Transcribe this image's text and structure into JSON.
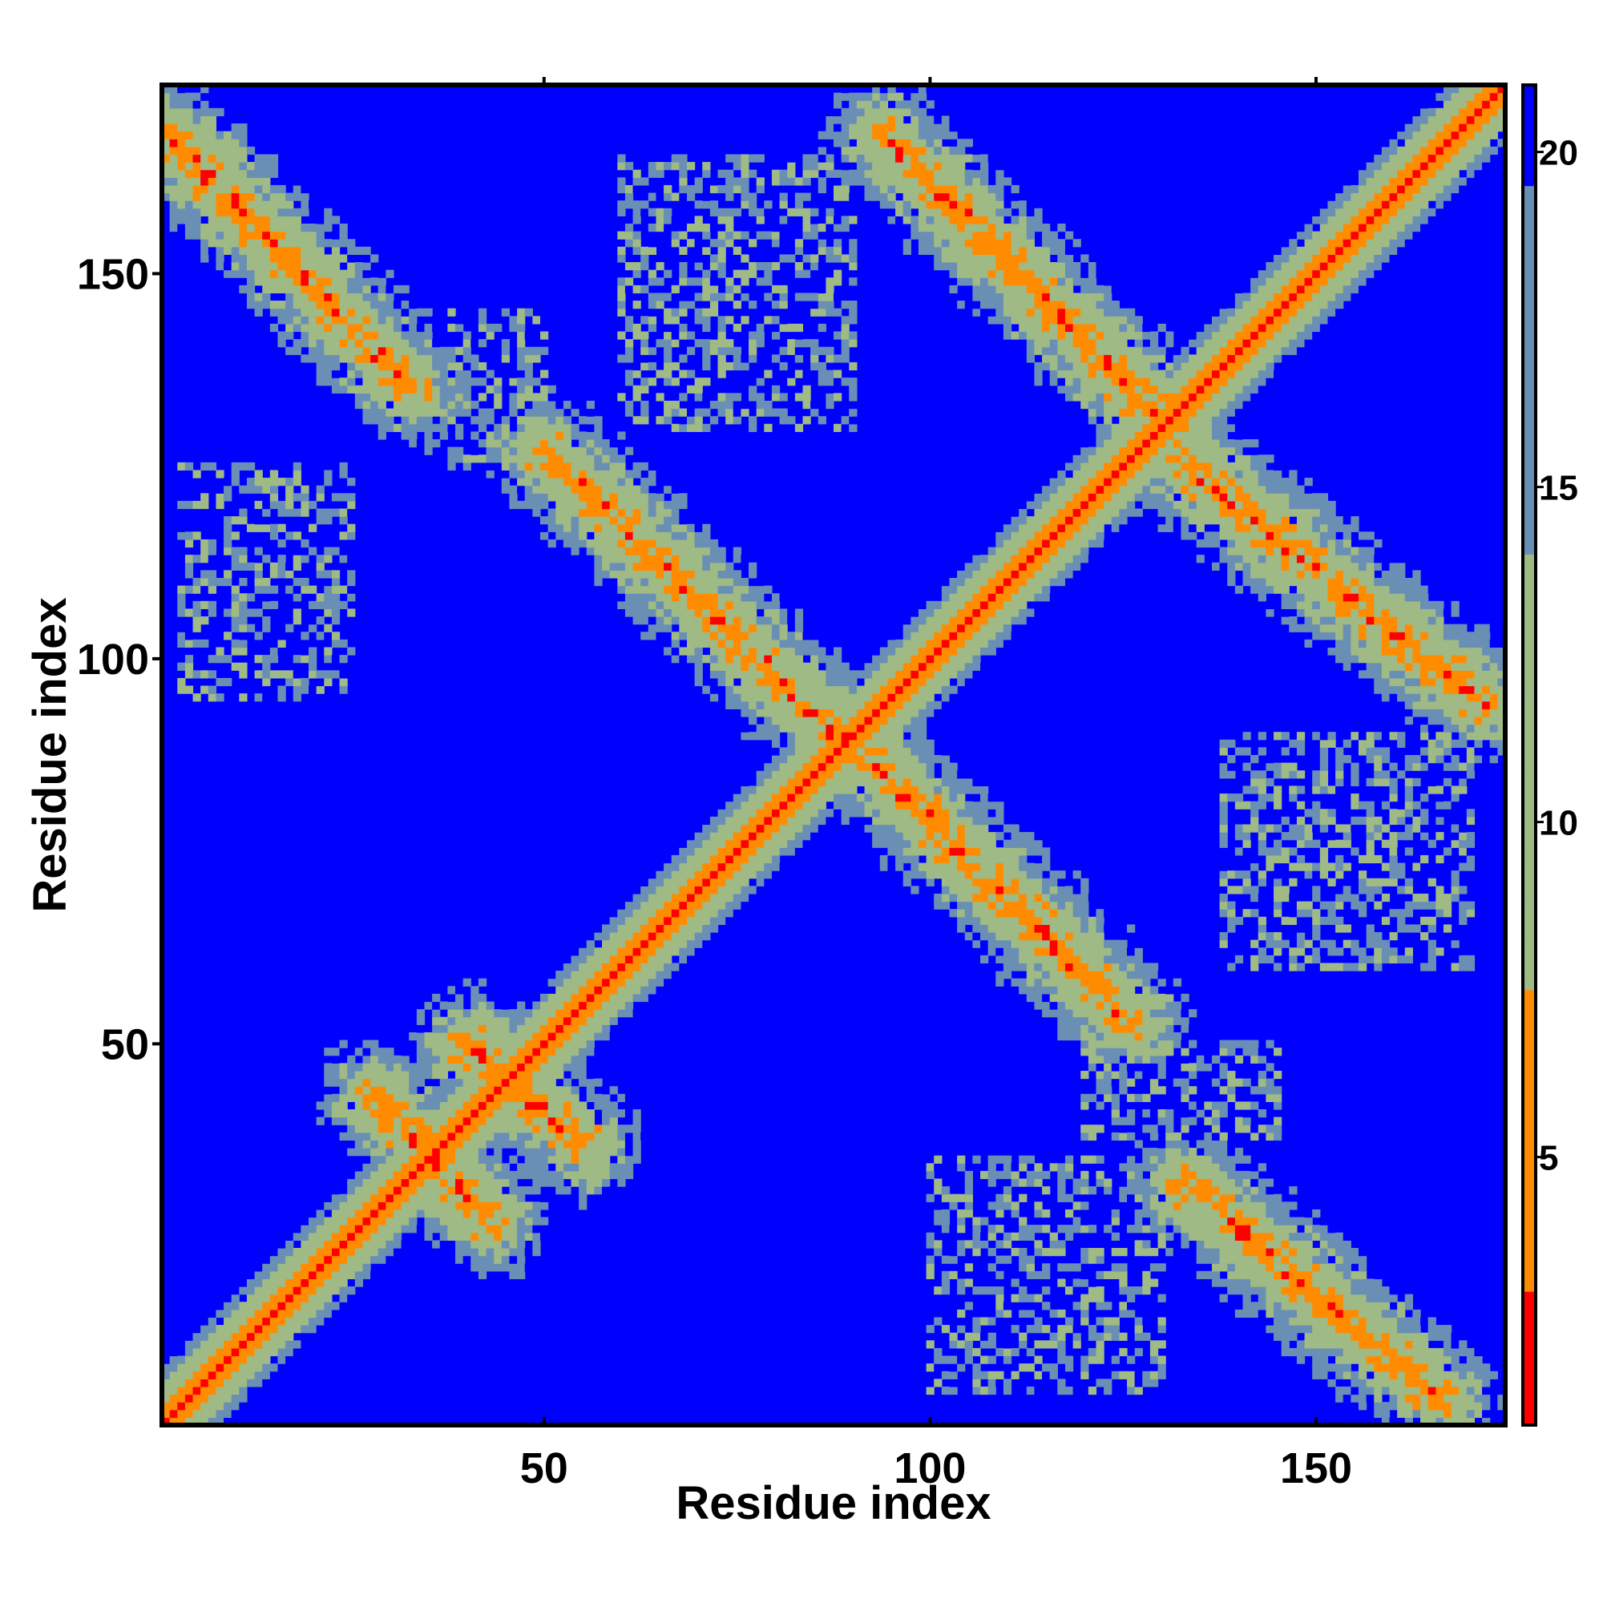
{
  "chart_data": {
    "type": "heatmap",
    "title": "",
    "xlabel": "Residue index",
    "ylabel": "Residue index",
    "xlim": [
      1,
      174
    ],
    "ylim": [
      1,
      174
    ],
    "x_ticks": [
      50,
      100,
      150
    ],
    "y_ticks": [
      50,
      100,
      150
    ],
    "colorbar": {
      "range": [
        1,
        21
      ],
      "ticks": [
        5,
        10,
        15,
        20
      ],
      "colors": [
        "#ff0000",
        "#ff8c00",
        "#9fba85",
        "#6a8fb4",
        "#0000ff"
      ]
    },
    "background_color": "#0000ff",
    "contact_bands": [
      {
        "from": [
          1,
          1
        ],
        "to": [
          174,
          174
        ],
        "kind": "main-diagonal"
      },
      {
        "from": [
          1,
          168
        ],
        "to": [
          33,
          135
        ],
        "kind": "antiparallel"
      },
      {
        "from": [
          50,
          127
        ],
        "to": [
          90,
          88
        ],
        "kind": "antiparallel"
      },
      {
        "from": [
          93,
          86
        ],
        "to": [
          126,
          53
        ],
        "kind": "antiparallel"
      },
      {
        "from": [
          133,
          32
        ],
        "to": [
          166,
          4
        ],
        "kind": "antiparallel"
      },
      {
        "from": [
          94,
          168
        ],
        "to": [
          131,
          130
        ],
        "kind": "antiparallel"
      },
      {
        "from": [
          133,
          125
        ],
        "to": [
          172,
          94
        ],
        "kind": "antiparallel"
      },
      {
        "from": [
          28,
          43
        ],
        "to": [
          43,
          27
        ],
        "kind": "antiparallel"
      },
      {
        "from": [
          40,
          50
        ],
        "to": [
          55,
          37
        ],
        "kind": "antiparallel"
      }
    ],
    "sparse_regions": [
      {
        "x": [
          60,
          90
        ],
        "y": [
          130,
          165
        ]
      },
      {
        "x": [
          3,
          25
        ],
        "y": [
          95,
          125
        ]
      },
      {
        "x": [
          138,
          170
        ],
        "y": [
          60,
          90
        ]
      },
      {
        "x": [
          100,
          130
        ],
        "y": [
          5,
          35
        ]
      },
      {
        "x": [
          38,
          50
        ],
        "y": [
          125,
          145
        ]
      },
      {
        "x": [
          120,
          145
        ],
        "y": [
          38,
          50
        ]
      }
    ]
  }
}
